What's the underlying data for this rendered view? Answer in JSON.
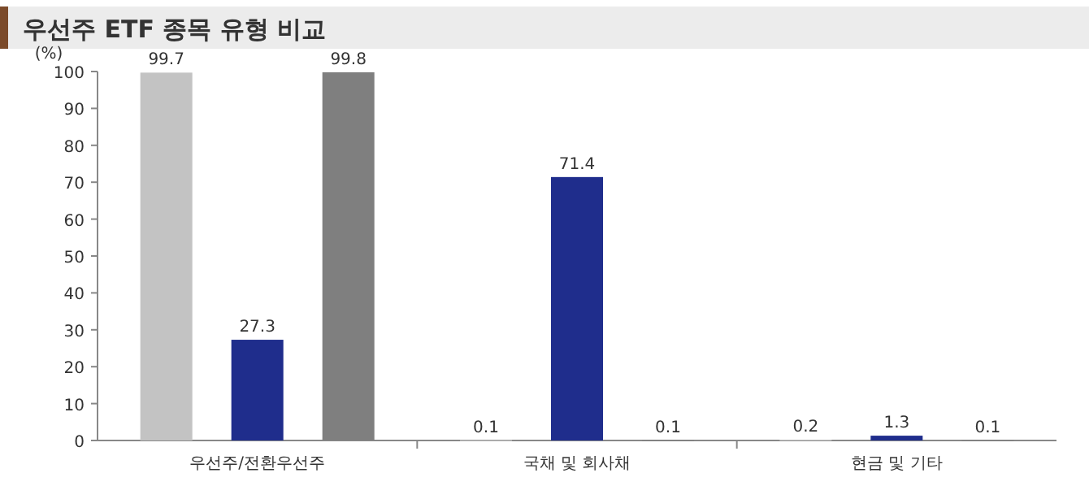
{
  "chart_data": {
    "type": "bar",
    "title": "우선주 ETF 종목 유형 비교",
    "ylabel": "(%)",
    "categories": [
      "우선주/전환우선주",
      "국채 및 회사채",
      "현금 및 기타"
    ],
    "series": [
      {
        "color": "#c3c3c3",
        "values": [
          99.7,
          0.1,
          0.2
        ]
      },
      {
        "color": "#1f2d8c",
        "values": [
          27.3,
          71.4,
          1.3
        ]
      },
      {
        "color": "#7f7f7f",
        "values": [
          99.8,
          0.1,
          0.1
        ]
      }
    ],
    "ylim": [
      0,
      100
    ],
    "yticks": [
      0,
      10,
      20,
      30,
      40,
      50,
      60,
      70,
      80,
      90,
      100
    ],
    "data_labels": true
  }
}
